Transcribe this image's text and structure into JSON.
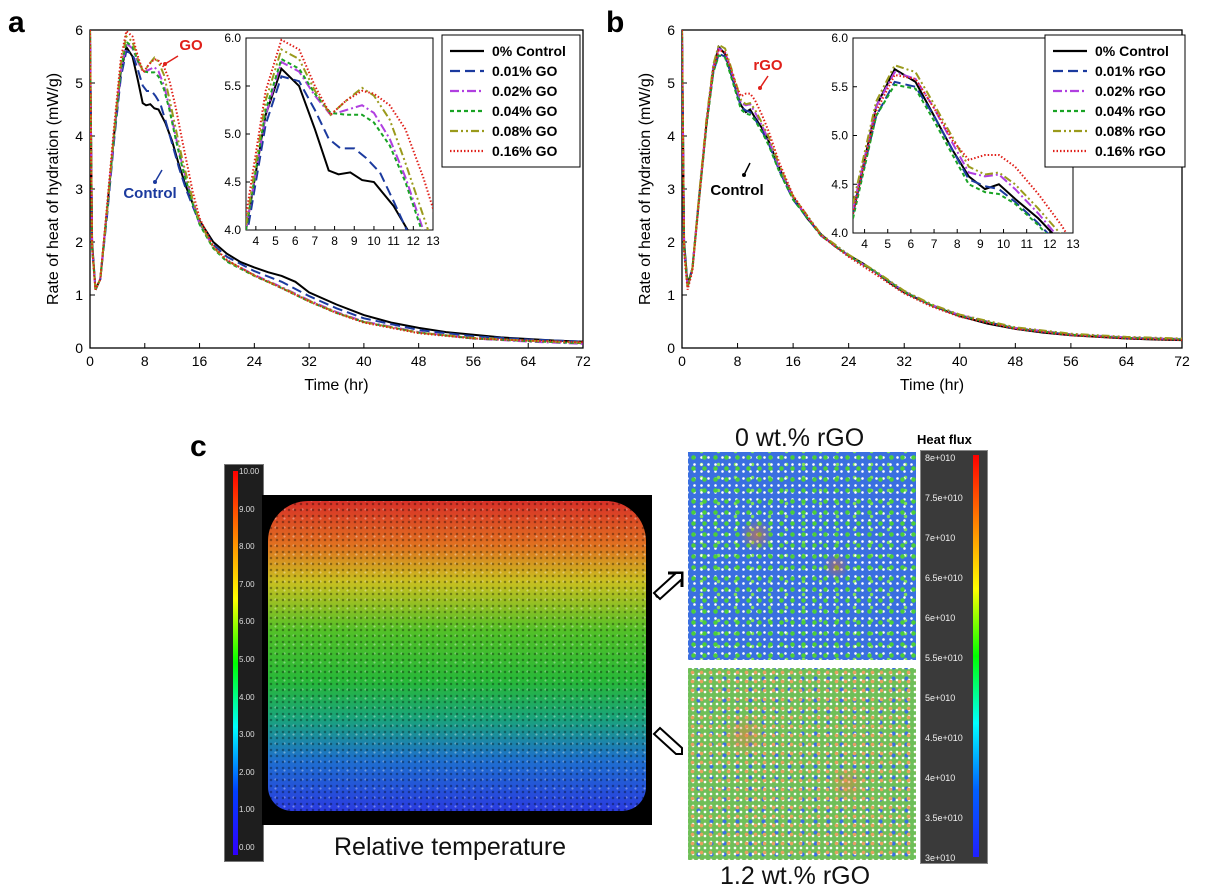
{
  "panels": {
    "a": {
      "letter": "a"
    },
    "b": {
      "letter": "b"
    },
    "c": {
      "letter": "c",
      "caption_left": "Relative temperature",
      "top_label": "0 wt.% rGO",
      "bottom_label": "1.2 wt.% rGO",
      "heat_flux_title": "Heat flux",
      "temp_scale_ticks": [
        "10.00",
        "9.00",
        "8.00",
        "7.00",
        "6.00",
        "5.00",
        "4.00",
        "3.00",
        "2.00",
        "1.00",
        "0.00"
      ],
      "heat_flux_ticks": [
        "8e+010",
        "7.5e+010",
        "7e+010",
        "6.5e+010",
        "6e+010",
        "5.5e+010",
        "5e+010",
        "4.5e+010",
        "4e+010",
        "3.5e+010",
        "3e+010"
      ]
    }
  },
  "chart_data": [
    {
      "type": "line",
      "panel": "a",
      "xlabel": "Time (hr)",
      "ylabel": "Rate of heat of hydration (mW/g)",
      "xlim": [
        0,
        72
      ],
      "ylim": [
        0,
        6
      ],
      "xticks": [
        0,
        8,
        16,
        24,
        32,
        40,
        48,
        56,
        64,
        72
      ],
      "yticks": [
        0,
        1,
        2,
        3,
        4,
        5,
        6
      ],
      "annotations": [
        {
          "text": "GO",
          "color": "#e0201a"
        },
        {
          "text": "Control",
          "color": "#1b3a9e"
        }
      ],
      "legend_position": "top-right",
      "series": [
        {
          "name": "0% Control",
          "color": "#000000",
          "dash": "solid",
          "x": [
            0,
            0.3,
            0.8,
            1.5,
            2.5,
            3.5,
            4.5,
            5.3,
            6.2,
            7,
            7.7,
            8.2,
            8.8,
            9.4,
            10,
            11,
            12,
            13,
            14,
            16,
            18,
            20,
            22,
            24,
            26,
            28,
            30,
            32,
            36,
            40,
            44,
            48,
            52,
            56,
            60,
            64,
            68,
            72
          ],
          "y": [
            6,
            2.0,
            1.1,
            1.3,
            2.6,
            4.0,
            5.2,
            5.68,
            5.5,
            5.05,
            4.62,
            4.58,
            4.6,
            4.52,
            4.5,
            4.25,
            3.9,
            3.45,
            3.05,
            2.4,
            2.0,
            1.78,
            1.62,
            1.52,
            1.43,
            1.36,
            1.25,
            1.05,
            0.82,
            0.62,
            0.48,
            0.38,
            0.3,
            0.25,
            0.2,
            0.17,
            0.14,
            0.12
          ]
        },
        {
          "name": "0.01% GO",
          "color": "#1b3a9e",
          "dash": "long-dash",
          "x": [
            0,
            0.3,
            0.8,
            1.5,
            2.5,
            3.5,
            4.5,
            5.3,
            6.2,
            7,
            7.7,
            8.3,
            9,
            9.6,
            10.3,
            11,
            12,
            13,
            14,
            16,
            18,
            20,
            24,
            28,
            32,
            36,
            40,
            48,
            56,
            64,
            72
          ],
          "y": [
            6,
            1.9,
            1.1,
            1.3,
            2.5,
            3.9,
            5.1,
            5.6,
            5.55,
            5.25,
            4.95,
            4.85,
            4.85,
            4.75,
            4.6,
            4.3,
            3.85,
            3.4,
            3.0,
            2.35,
            1.95,
            1.72,
            1.45,
            1.25,
            0.98,
            0.75,
            0.56,
            0.34,
            0.22,
            0.16,
            0.12
          ]
        },
        {
          "name": "0.02% GO",
          "color": "#b03fe0",
          "dash": "dash-dot",
          "x": [
            0,
            0.3,
            0.8,
            1.5,
            2.5,
            3.5,
            4.5,
            5.3,
            6.2,
            7,
            7.8,
            8.6,
            9.4,
            10,
            10.8,
            11.6,
            12.5,
            13.5,
            15,
            16,
            18,
            20,
            24,
            28,
            32,
            36,
            40,
            48,
            56,
            64,
            72
          ],
          "y": [
            6,
            1.9,
            1.1,
            1.3,
            2.6,
            4.0,
            5.2,
            5.75,
            5.65,
            5.4,
            5.2,
            5.25,
            5.3,
            5.22,
            4.95,
            4.55,
            4.0,
            3.45,
            2.75,
            2.35,
            1.9,
            1.65,
            1.38,
            1.15,
            0.9,
            0.68,
            0.5,
            0.3,
            0.18,
            0.12,
            0.08
          ]
        },
        {
          "name": "0.04% GO",
          "color": "#19a324",
          "dash": "short-dash",
          "x": [
            0,
            0.3,
            0.8,
            1.5,
            2.5,
            3.5,
            4.5,
            5.3,
            6.2,
            7,
            7.8,
            8.6,
            9.4,
            10,
            10.8,
            11.6,
            12.5,
            13.5,
            15,
            16,
            18,
            20,
            24,
            28,
            32,
            36,
            40,
            48,
            56,
            64,
            72
          ],
          "y": [
            6,
            1.9,
            1.1,
            1.3,
            2.6,
            4.0,
            5.25,
            5.78,
            5.68,
            5.42,
            5.22,
            5.2,
            5.2,
            5.12,
            4.88,
            4.5,
            3.95,
            3.4,
            2.72,
            2.33,
            1.88,
            1.63,
            1.36,
            1.13,
            0.88,
            0.66,
            0.49,
            0.29,
            0.18,
            0.13,
            0.09
          ]
        },
        {
          "name": "0.08% GO",
          "color": "#9a9a1c",
          "dash": "dash-dot-dot",
          "x": [
            0,
            0.3,
            0.8,
            1.5,
            2.5,
            3.5,
            4.5,
            5.3,
            6.2,
            7,
            7.8,
            8.6,
            9.4,
            10,
            10.8,
            11.6,
            12.5,
            13.5,
            15,
            16,
            18,
            20,
            24,
            28,
            32,
            36,
            40,
            48,
            56,
            64,
            72
          ],
          "y": [
            6,
            1.9,
            1.1,
            1.3,
            2.6,
            4.05,
            5.35,
            5.88,
            5.78,
            5.45,
            5.2,
            5.35,
            5.48,
            5.4,
            5.15,
            4.7,
            4.15,
            3.55,
            2.8,
            2.38,
            1.9,
            1.65,
            1.37,
            1.14,
            0.89,
            0.67,
            0.49,
            0.29,
            0.19,
            0.14,
            0.1
          ]
        },
        {
          "name": "0.16% GO",
          "color": "#e0201a",
          "dash": "dotted",
          "x": [
            0,
            0.3,
            0.8,
            1.5,
            2.5,
            3.5,
            4.5,
            5.3,
            6.2,
            7,
            7.8,
            8.6,
            9.4,
            10,
            10.8,
            11.6,
            12.5,
            13.5,
            15,
            16,
            18,
            20,
            24,
            28,
            32,
            36,
            40,
            48,
            56,
            64,
            72
          ],
          "y": [
            6,
            1.9,
            1.1,
            1.3,
            2.7,
            4.15,
            5.45,
            5.98,
            5.88,
            5.5,
            5.2,
            5.35,
            5.45,
            5.42,
            5.3,
            5.05,
            4.55,
            3.9,
            2.95,
            2.45,
            1.92,
            1.66,
            1.37,
            1.13,
            0.88,
            0.66,
            0.48,
            0.28,
            0.18,
            0.14,
            0.11
          ]
        }
      ],
      "inset": {
        "xlim": [
          3.5,
          13
        ],
        "ylim": [
          4.0,
          6.0
        ],
        "xticks": [
          4,
          5,
          6,
          7,
          8,
          9,
          10,
          11,
          12,
          13
        ],
        "yticks": [
          4.0,
          4.5,
          5.0,
          5.5,
          6.0
        ]
      }
    },
    {
      "type": "line",
      "panel": "b",
      "xlabel": "Time (hr)",
      "ylabel": "Rate of heat of hydration (mW/g)",
      "xlim": [
        0,
        72
      ],
      "ylim": [
        0,
        6
      ],
      "xticks": [
        0,
        8,
        16,
        24,
        32,
        40,
        48,
        56,
        64,
        72
      ],
      "yticks": [
        0,
        1,
        2,
        3,
        4,
        5,
        6
      ],
      "annotations": [
        {
          "text": "rGO",
          "color": "#e0201a"
        },
        {
          "text": "Control",
          "color": "#000000"
        }
      ],
      "legend_position": "top-right",
      "series": [
        {
          "name": "0% Control",
          "color": "#000000",
          "dash": "solid",
          "x": [
            0,
            0.3,
            0.8,
            1.5,
            2.5,
            3.5,
            4.5,
            5.3,
            6.2,
            7,
            7.8,
            8.5,
            9.2,
            9.8,
            10.5,
            11.5,
            12.5,
            14,
            16,
            18,
            20,
            22,
            24,
            26,
            28,
            30,
            32,
            36,
            40,
            44,
            48,
            52,
            56,
            60,
            64,
            68,
            72
          ],
          "y": [
            6,
            2.0,
            1.2,
            1.5,
            2.9,
            4.2,
            5.3,
            5.68,
            5.55,
            5.2,
            4.85,
            4.58,
            4.45,
            4.5,
            4.35,
            4.15,
            3.9,
            3.4,
            2.85,
            2.45,
            2.15,
            1.92,
            1.75,
            1.6,
            1.42,
            1.22,
            1.05,
            0.8,
            0.6,
            0.46,
            0.36,
            0.29,
            0.24,
            0.21,
            0.18,
            0.16,
            0.15
          ]
        },
        {
          "name": "0.01% rGO",
          "color": "#1b3a9e",
          "dash": "long-dash",
          "x": [
            0,
            0.3,
            0.8,
            1.5,
            2.5,
            3.5,
            4.5,
            5.3,
            6.2,
            7,
            7.8,
            8.5,
            9.2,
            9.8,
            10.5,
            11.5,
            12.5,
            14,
            16,
            20,
            24,
            28,
            32,
            36,
            40,
            48,
            56,
            64,
            72
          ],
          "y": [
            6,
            1.9,
            1.15,
            1.5,
            2.9,
            4.2,
            5.2,
            5.55,
            5.5,
            5.2,
            4.85,
            4.55,
            4.48,
            4.45,
            4.32,
            4.1,
            3.85,
            3.35,
            2.8,
            2.12,
            1.74,
            1.42,
            1.06,
            0.8,
            0.61,
            0.37,
            0.25,
            0.19,
            0.16
          ]
        },
        {
          "name": "0.02% rGO",
          "color": "#b03fe0",
          "dash": "dash-dot",
          "x": [
            0,
            0.3,
            0.8,
            1.5,
            2.5,
            3.5,
            4.5,
            5.3,
            6.2,
            7,
            7.8,
            8.5,
            9.2,
            9.8,
            10.5,
            11.5,
            12.5,
            14,
            16,
            20,
            24,
            28,
            32,
            36,
            40,
            48,
            56,
            64,
            72
          ],
          "y": [
            6,
            1.9,
            1.15,
            1.5,
            2.9,
            4.25,
            5.3,
            5.65,
            5.58,
            5.28,
            4.92,
            4.62,
            4.58,
            4.6,
            4.45,
            4.2,
            3.92,
            3.4,
            2.83,
            2.13,
            1.74,
            1.42,
            1.07,
            0.81,
            0.62,
            0.38,
            0.26,
            0.2,
            0.17
          ]
        },
        {
          "name": "0.04% rGO",
          "color": "#19a324",
          "dash": "short-dash",
          "x": [
            0,
            0.3,
            0.8,
            1.5,
            2.5,
            3.5,
            4.5,
            5.3,
            6.2,
            7,
            7.8,
            8.5,
            9.2,
            9.8,
            10.5,
            11.5,
            12.5,
            14,
            16,
            20,
            24,
            28,
            32,
            36,
            40,
            48,
            56,
            64,
            72
          ],
          "y": [
            6,
            1.9,
            1.15,
            1.5,
            2.85,
            4.15,
            5.2,
            5.52,
            5.48,
            5.15,
            4.8,
            4.5,
            4.42,
            4.4,
            4.3,
            4.08,
            3.82,
            3.33,
            2.8,
            2.12,
            1.74,
            1.42,
            1.06,
            0.8,
            0.61,
            0.37,
            0.25,
            0.19,
            0.16
          ]
        },
        {
          "name": "0.08% rGO",
          "color": "#9a9a1c",
          "dash": "dash-dot-dot",
          "x": [
            0,
            0.3,
            0.8,
            1.5,
            2.5,
            3.5,
            4.5,
            5.3,
            6.2,
            7,
            7.8,
            8.5,
            9.2,
            9.8,
            10.5,
            11.5,
            12.5,
            14,
            16,
            20,
            24,
            28,
            32,
            36,
            40,
            48,
            56,
            64,
            72
          ],
          "y": [
            6,
            1.9,
            1.15,
            1.5,
            2.95,
            4.3,
            5.35,
            5.72,
            5.65,
            5.32,
            4.98,
            4.68,
            4.6,
            4.62,
            4.5,
            4.25,
            3.98,
            3.45,
            2.86,
            2.15,
            1.76,
            1.44,
            1.08,
            0.82,
            0.63,
            0.39,
            0.27,
            0.21,
            0.18
          ]
        },
        {
          "name": "0.16% rGO",
          "color": "#e0201a",
          "dash": "dotted",
          "x": [
            0,
            0.3,
            0.8,
            1.5,
            2.5,
            3.5,
            4.5,
            5.3,
            6.2,
            7,
            7.8,
            8.5,
            9.2,
            9.8,
            10.5,
            11.5,
            12.5,
            14,
            16,
            20,
            24,
            28,
            32,
            36,
            40,
            48,
            56,
            64,
            72
          ],
          "y": [
            6,
            1.8,
            1.1,
            1.45,
            2.85,
            4.2,
            5.25,
            5.62,
            5.58,
            5.28,
            4.95,
            4.75,
            4.8,
            4.8,
            4.68,
            4.4,
            4.08,
            3.5,
            2.88,
            2.12,
            1.72,
            1.38,
            1.03,
            0.78,
            0.59,
            0.36,
            0.24,
            0.18,
            0.15
          ]
        }
      ],
      "inset": {
        "xlim": [
          3.5,
          13
        ],
        "ylim": [
          4.0,
          6.0
        ],
        "xticks": [
          4,
          5,
          6,
          7,
          8,
          9,
          10,
          11,
          12,
          13
        ],
        "yticks": [
          4.0,
          4.5,
          5.0,
          5.5,
          6.0
        ]
      }
    }
  ]
}
